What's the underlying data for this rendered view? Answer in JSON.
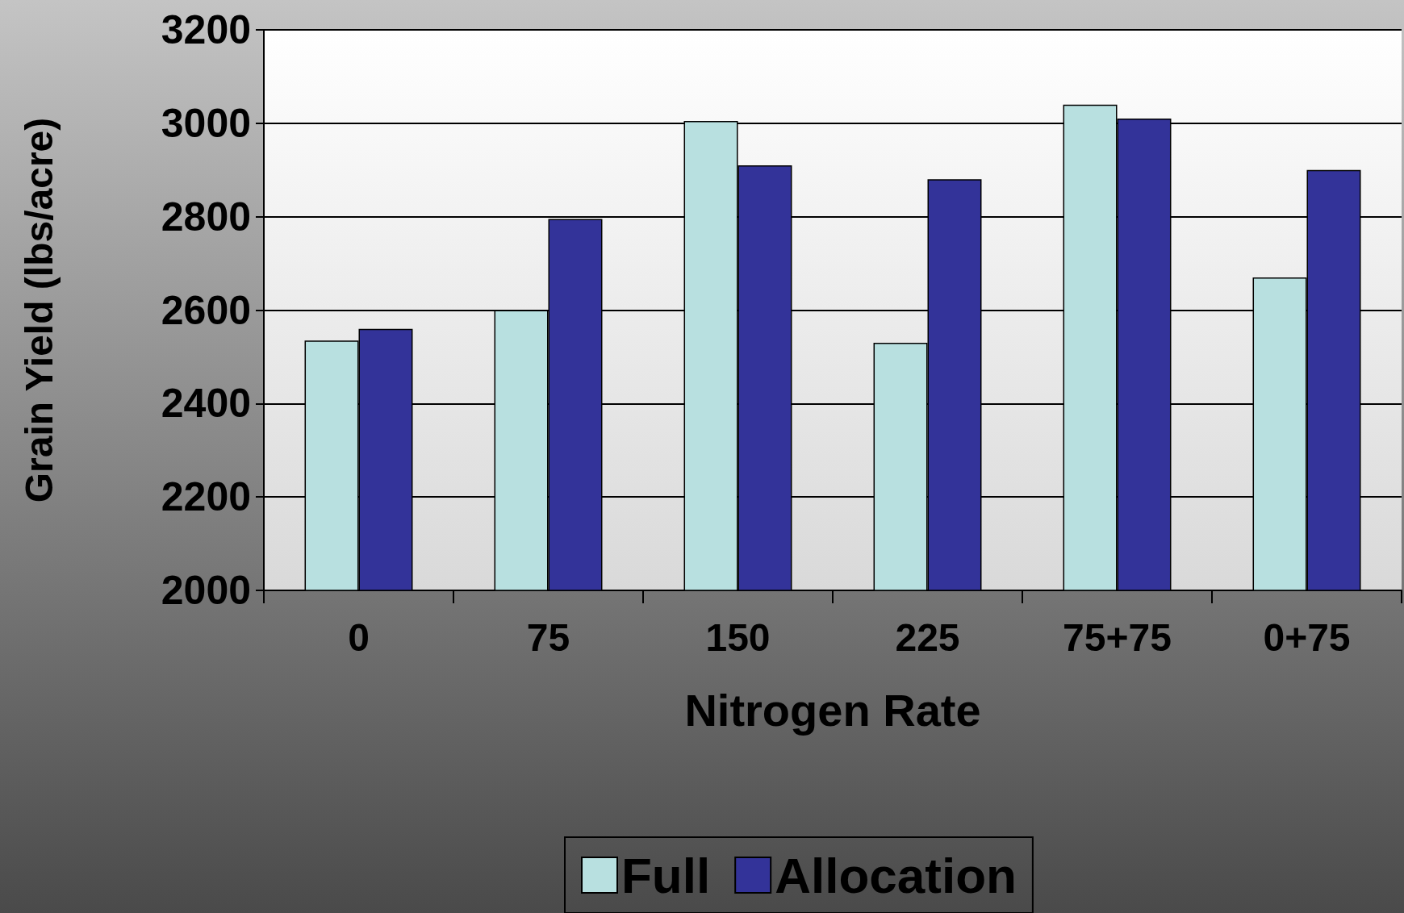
{
  "chart_data": {
    "type": "bar",
    "xlabel": "Nitrogen Rate",
    "ylabel": "Grain Yield (lbs/acre)",
    "categories": [
      "0",
      "75",
      "150",
      "225",
      "75+75",
      "0+75"
    ],
    "series": [
      {
        "name": "Full",
        "color": "#b8e0e0",
        "values": [
          2535,
          2600,
          3005,
          2530,
          3040,
          2670
        ]
      },
      {
        "name": "Allocation",
        "color": "#333399",
        "values": [
          2560,
          2795,
          2910,
          2880,
          3010,
          2900
        ]
      }
    ],
    "ylim": [
      2000,
      3200
    ],
    "yticks": [
      2000,
      2200,
      2400,
      2600,
      2800,
      3000,
      3200
    ],
    "grid": "y",
    "legend": "bottom"
  }
}
